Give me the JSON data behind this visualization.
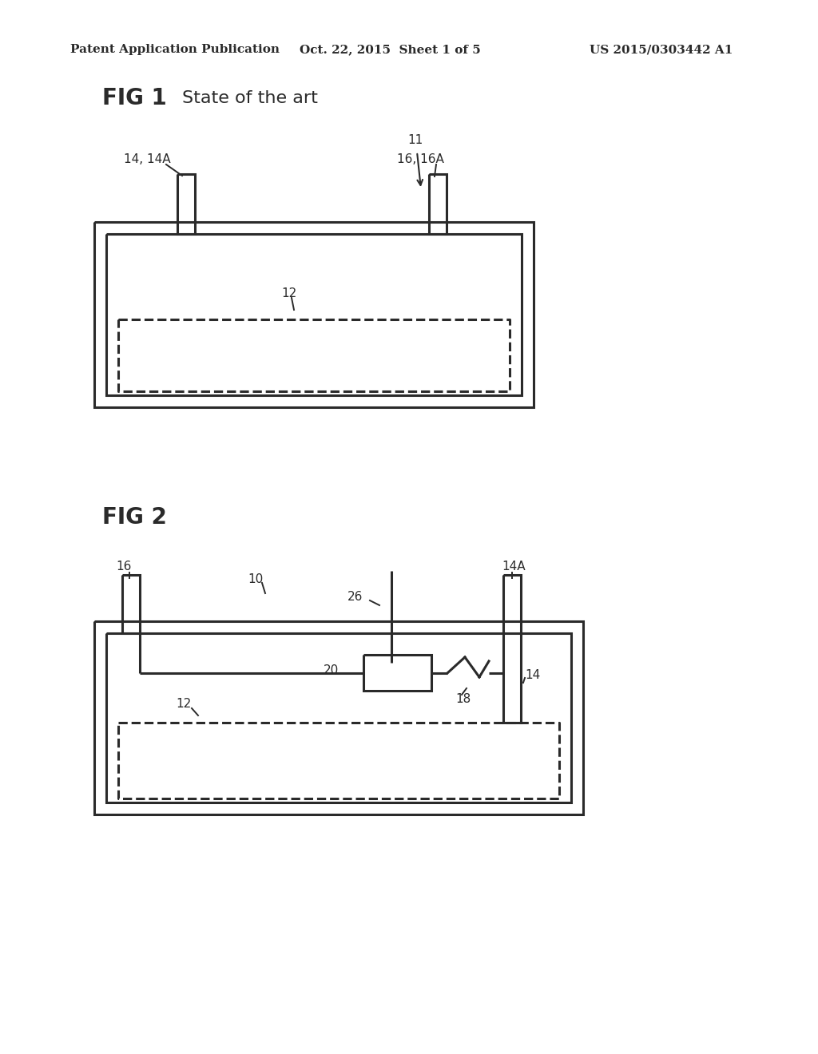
{
  "bg_color": "#ffffff",
  "lc": "#2a2a2a",
  "lw": 2.2,
  "thin_lw": 1.4,
  "header_left": "Patent Application Publication",
  "header_mid": "Oct. 22, 2015  Sheet 1 of 5",
  "header_right": "US 2015/0303442 A1",
  "fig1_label": "FIG 1",
  "fig1_subtitle": "State of the art",
  "fig2_label": "FIG 2"
}
